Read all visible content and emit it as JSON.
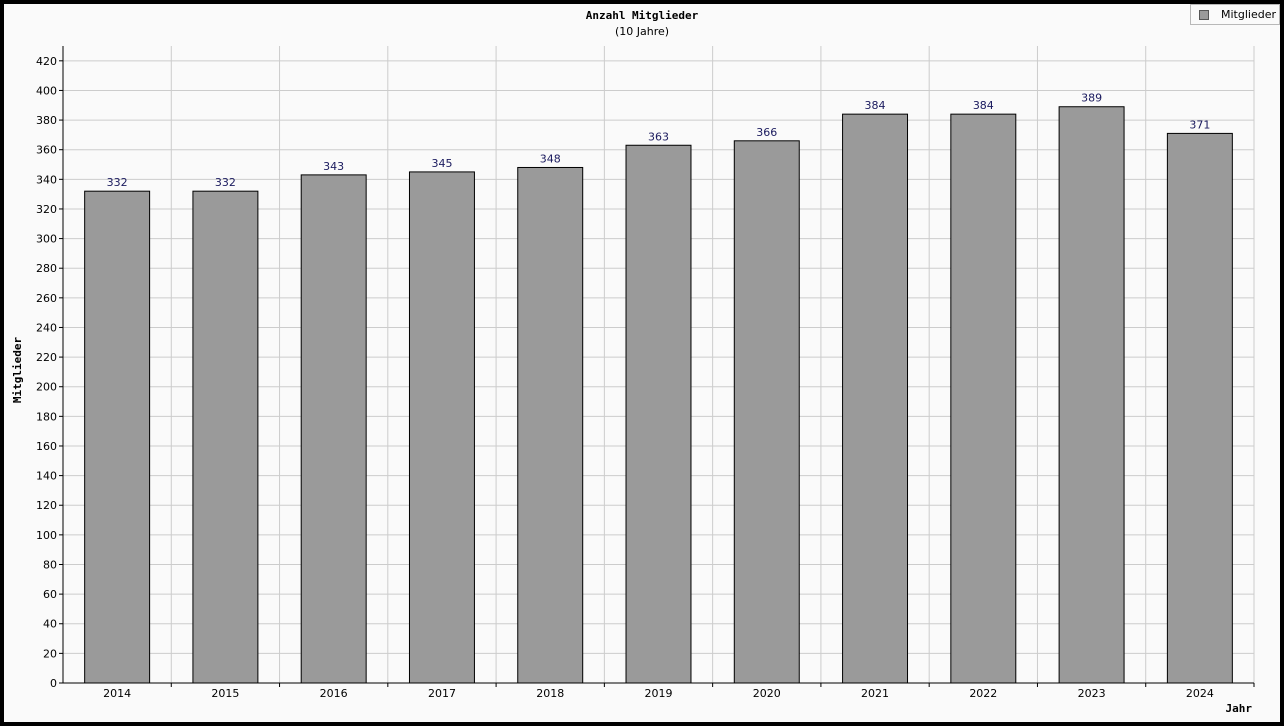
{
  "chart_data": {
    "type": "bar",
    "title": "Anzahl Mitglieder",
    "subtitle": "(10 Jahre)",
    "xlabel": "Jahr",
    "ylabel": "Mitglieder",
    "categories": [
      "2014",
      "2015",
      "2016",
      "2017",
      "2018",
      "2019",
      "2020",
      "2021",
      "2022",
      "2023",
      "2024"
    ],
    "series": [
      {
        "name": "Mitglieder",
        "values": [
          332,
          332,
          343,
          345,
          348,
          363,
          366,
          384,
          384,
          389,
          371
        ]
      }
    ],
    "ylim": [
      0,
      430
    ],
    "yticks": [
      0,
      20,
      40,
      60,
      80,
      100,
      120,
      140,
      160,
      180,
      200,
      220,
      240,
      260,
      280,
      300,
      320,
      340,
      360,
      380,
      400,
      420
    ],
    "grid": true,
    "legend_position": "top-right",
    "colors": {
      "bar": "#9a9a9a",
      "bar_border": "#000000",
      "value_label": "#1a1a5e",
      "grid": "#cccccc"
    }
  }
}
